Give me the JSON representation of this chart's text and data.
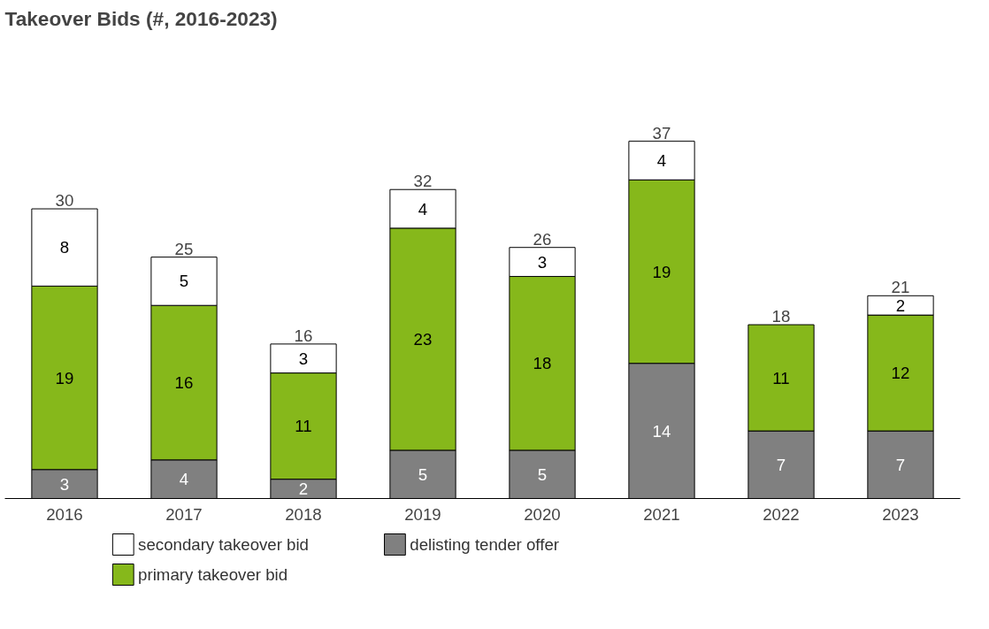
{
  "chart_data": {
    "type": "bar",
    "title": "Takeover Bids (#, 2016-2023)",
    "stacked": true,
    "data_labels": true,
    "legend": "bottom",
    "categories": [
      "2016",
      "2017",
      "2018",
      "2019",
      "2020",
      "2021",
      "2022",
      "2023"
    ],
    "series": [
      {
        "name": "delisting tender offer",
        "color": "#808080",
        "values": [
          3,
          4,
          2,
          5,
          5,
          14,
          7,
          7
        ]
      },
      {
        "name": "primary takeover bid",
        "color": "#86b81b",
        "values": [
          19,
          16,
          11,
          23,
          18,
          19,
          11,
          12
        ]
      },
      {
        "name": "secondary takeover bid",
        "color": "#ffffff",
        "values": [
          8,
          5,
          3,
          4,
          3,
          4,
          null,
          2
        ]
      }
    ],
    "totals": [
      "30",
      "25",
      "16",
      "32",
      "26",
      "37",
      "18",
      "21"
    ]
  }
}
